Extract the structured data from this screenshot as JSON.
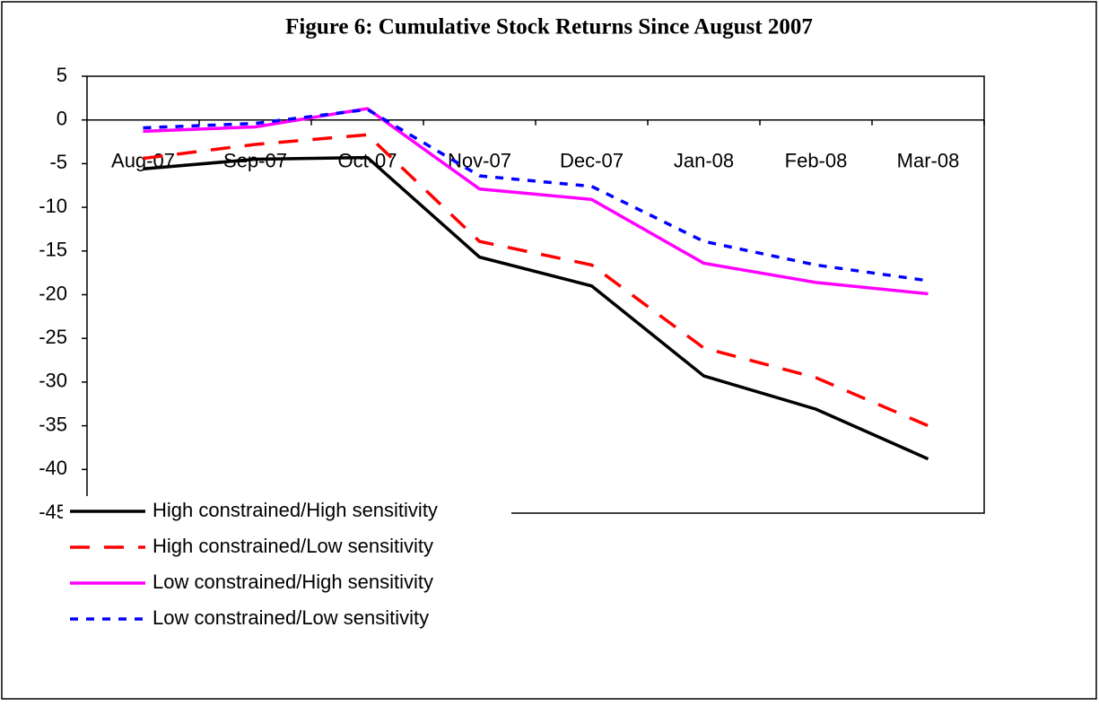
{
  "chart_data": {
    "type": "line",
    "title": "Figure 6: Cumulative Stock Returns Since August 2007",
    "categories": [
      "Aug-07",
      "Sep-07",
      "Oct-07",
      "Nov-07",
      "Dec-07",
      "Jan-08",
      "Feb-08",
      "Mar-08"
    ],
    "series": [
      {
        "name": "High constrained/High sensitivity",
        "color": "#000000",
        "dash": "solid",
        "values": [
          -5.6,
          -4.5,
          -4.3,
          -15.7,
          -19.0,
          -29.3,
          -33.1,
          -38.8
        ]
      },
      {
        "name": "High constrained/Low sensitivity",
        "color": "#ff0000",
        "dash": "long",
        "values": [
          -4.4,
          -2.8,
          -1.7,
          -13.9,
          -16.6,
          -26.1,
          -29.5,
          -35.0
        ]
      },
      {
        "name": "Low constrained/High sensitivity",
        "color": "#ff00ff",
        "dash": "solid",
        "values": [
          -1.3,
          -0.8,
          1.3,
          -7.9,
          -9.1,
          -16.4,
          -18.6,
          -19.9
        ]
      },
      {
        "name": "Low constrained/Low sensitivity",
        "color": "#0000ff",
        "dash": "short",
        "values": [
          -0.9,
          -0.4,
          1.2,
          -6.4,
          -7.6,
          -13.9,
          -16.6,
          -18.4
        ]
      }
    ],
    "ylim": [
      -45,
      5
    ],
    "yticks": [
      5,
      0,
      -5,
      -10,
      -15,
      -20,
      -25,
      -30,
      -35,
      -40,
      -45
    ],
    "legend": "lower left"
  }
}
